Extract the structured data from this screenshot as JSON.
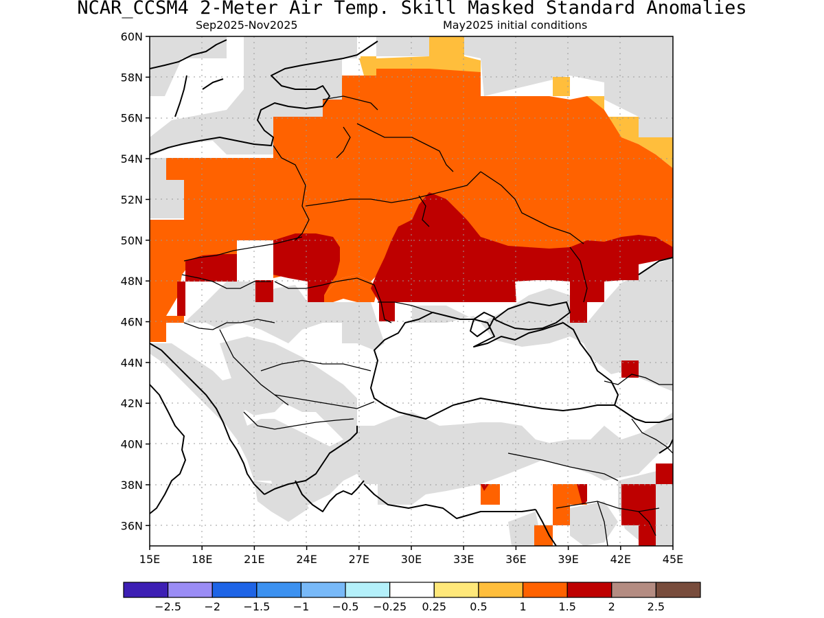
{
  "title": "NCAR_CCSM4 2-Meter Air Temp. Skill Masked Standard Anomalies",
  "subtitle_left": "Sep2025-Nov2025",
  "subtitle_right": "May2025 initial conditions",
  "map": {
    "lon_range": [
      15,
      45
    ],
    "lat_range": [
      35,
      60
    ],
    "lat_ticks": [
      "60N",
      "58N",
      "56N",
      "54N",
      "52N",
      "50N",
      "48N",
      "46N",
      "44N",
      "42N",
      "40N",
      "38N",
      "36N"
    ],
    "lon_ticks": [
      "15E",
      "18E",
      "21E",
      "24E",
      "27E",
      "30E",
      "33E",
      "36E",
      "39E",
      "42E",
      "45E"
    ],
    "colors": {
      "masked": "#dddddd",
      "c05": "#ffe87a",
      "c1": "#ffbe3c",
      "c15": "#ff6200",
      "c2": "#be0000",
      "coast": "#000000"
    }
  },
  "colorbar": {
    "colors": [
      "#3d1fb4",
      "#9a8cf5",
      "#1e64e6",
      "#3c91f0",
      "#78b9f8",
      "#b4f0fa",
      "#ffffff",
      "#ffe87a",
      "#ffbe3c",
      "#ff6200",
      "#be0000",
      "#b48c82",
      "#784c3c"
    ],
    "labels": [
      "-2.5",
      "-2",
      "-1.5",
      "-1",
      "-0.5",
      "-0.25",
      "0.25",
      "0.5",
      "1",
      "1.5",
      "2",
      "2.5"
    ]
  }
}
